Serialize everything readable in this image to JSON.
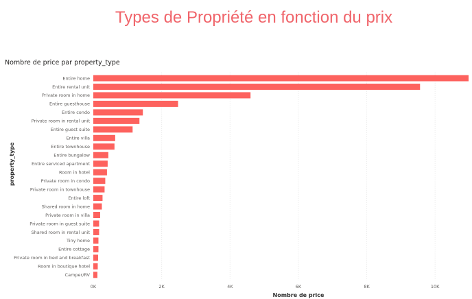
{
  "page": {
    "title": "Types de Propriété en fonction du prix"
  },
  "visual": {
    "title": "Nombre de price par property_type"
  },
  "colors": {
    "bar": "#fd625e",
    "title": "#f0656b",
    "grid": "#e6e6e6"
  },
  "chart_data": {
    "type": "bar",
    "orientation": "horizontal",
    "title": "Nombre de price par property_type",
    "xlabel": "Nombre de price",
    "ylabel": "property_type",
    "xlim": [
      0,
      11000
    ],
    "xticks": [
      {
        "value": 0,
        "label": "0K"
      },
      {
        "value": 2000,
        "label": "2K"
      },
      {
        "value": 4000,
        "label": "4K"
      },
      {
        "value": 6000,
        "label": "6K"
      },
      {
        "value": 8000,
        "label": "8K"
      },
      {
        "value": 10000,
        "label": "10K"
      }
    ],
    "grid": true,
    "legend": "none",
    "categories": [
      "Entire home",
      "Entire rental unit",
      "Private room in home",
      "Entire guesthouse",
      "Entire condo",
      "Private room in rental unit",
      "Entire guest suite",
      "Entire villa",
      "Entire townhouse",
      "Entire bungalow",
      "Entire serviced apartment",
      "Room in hotel",
      "Private room in condo",
      "Private room in townhouse",
      "Entire loft",
      "Shared room in home",
      "Private room in villa",
      "Private room in guest suite",
      "Shared room in rental unit",
      "Tiny home",
      "Entire cottage",
      "Private room in bed and breakfast",
      "Room in boutique hotel",
      "Camper/RV"
    ],
    "values": [
      10980,
      9560,
      4600,
      2480,
      1450,
      1350,
      1150,
      640,
      620,
      440,
      420,
      400,
      350,
      330,
      270,
      250,
      200,
      170,
      170,
      150,
      150,
      140,
      130,
      120
    ]
  }
}
